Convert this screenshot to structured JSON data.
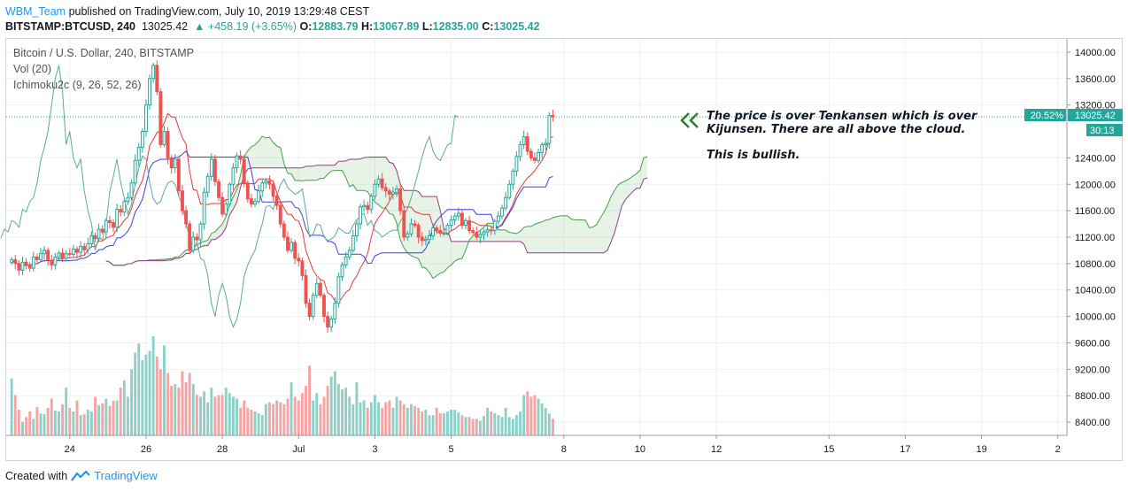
{
  "header": {
    "author": "WBM_Team",
    "published_text": "published on TradingView.com, July 10, 2019 13:29:48 CEST"
  },
  "ohlc": {
    "symbol": "BITSTAMP:BTCUSD, 240",
    "last": "13025.42",
    "change": "▲ +458.19 (+3.65%)",
    "o_label": "O:",
    "o": "12883.79",
    "h_label": "H:",
    "h": "13067.89",
    "l_label": "L:",
    "l": "12835.00",
    "c_label": "C:",
    "c": "13025.42"
  },
  "legend": {
    "title": "Bitcoin / U.S. Dollar, 240, BITSTAMP",
    "vol": "Vol (20)",
    "ichimoku": "Ichimoku2c (9, 26, 52, 26)"
  },
  "annotation": {
    "line1": "The price is over Tenkansen which is over",
    "line2": "Kijunsen. There are all above the cloud.",
    "line3": "This is bullish."
  },
  "badges": {
    "percent": "20.52%",
    "price": "13025.42",
    "countdown": "30:13"
  },
  "footer": {
    "created_with": "Created with",
    "brand": "TradingView"
  },
  "colors": {
    "up": "#26a69a",
    "down": "#ef5350",
    "vol_up": "#8dd0c8",
    "vol_down": "#f5a3a3",
    "tenkan": "#e53935",
    "kijun": "#3f3fdf",
    "chikou": "#5ba9a0",
    "span_a": "#43a047",
    "span_b": "#8e3f7f",
    "cloud": "rgba(67,160,71,0.13)",
    "arrow": "#2e7d32"
  },
  "chart_data": {
    "type": "candlestick",
    "title": "Bitcoin / U.S. Dollar, 240, BITSTAMP",
    "y_ticks": [
      14000,
      13600,
      13200,
      12400,
      12000,
      11600,
      11200,
      10800,
      10400,
      10000,
      9600,
      9200,
      8800,
      8400
    ],
    "y_tick_labels": [
      "14000.00",
      "13600.00",
      "13200.00",
      "12400.00",
      "12000.00",
      "11600.00",
      "11200.00",
      "10800.00",
      "10400.00",
      "10000.00",
      "9600.00",
      "9200.00",
      "8800.00",
      "8400.00"
    ],
    "ylim": [
      8200,
      14200
    ],
    "x_ticks": [
      {
        "label": "24",
        "i": 16
      },
      {
        "label": "26",
        "i": 37
      },
      {
        "label": "28",
        "i": 58
      },
      {
        "label": "Jul",
        "i": 79
      },
      {
        "label": "3",
        "i": 100
      },
      {
        "label": "5",
        "i": 121
      },
      {
        "label": "8",
        "i": 152
      },
      {
        "label": "10",
        "i": 173
      },
      {
        "label": "12",
        "i": 194
      },
      {
        "label": "15",
        "i": 225
      },
      {
        "label": "17",
        "i": 246
      },
      {
        "label": "19",
        "i": 267
      },
      {
        "label": "2",
        "i": 288
      }
    ],
    "x_range": [
      -1.5,
      290.5
    ],
    "close": [
      10860,
      10800,
      10700,
      10820,
      10780,
      10730,
      10900,
      10860,
      10950,
      11000,
      10850,
      10780,
      10900,
      10960,
      10880,
      10950,
      10940,
      11020,
      10970,
      11060,
      11010,
      11100,
      11220,
      11180,
      11320,
      11280,
      11450,
      11420,
      11350,
      11620,
      11580,
      11740,
      11800,
      12020,
      12360,
      12560,
      12800,
      13200,
      13600,
      13800,
      13400,
      12600,
      12800,
      12400,
      12250,
      12380,
      11900,
      11600,
      11400,
      11000,
      11200,
      11160,
      11400,
      11880,
      12120,
      12380,
      12040,
      11800,
      11550,
      11700,
      12000,
      12250,
      12430,
      12380,
      12020,
      11780,
      11700,
      11740,
      11900,
      12020,
      12050,
      12000,
      11820,
      11680,
      11400,
      11200,
      11000,
      11120,
      10880,
      10840,
      10620,
      10200,
      10000,
      10320,
      10500,
      10320,
      10000,
      9840,
      9960,
      10200,
      10600,
      10780,
      10900,
      11000,
      11220,
      11400,
      11660,
      11680,
      11620,
      11820,
      12000,
      12080,
      11950,
      11900,
      11850,
      11880,
      11930,
      11600,
      11200,
      11250,
      11400,
      11380,
      11200,
      11150,
      11170,
      11220,
      11340,
      11300,
      11260,
      11260,
      11380,
      11460,
      11520,
      11560,
      11380,
      11450,
      11300,
      11270,
      11200,
      11240,
      11280,
      11310,
      11300,
      11440,
      11520,
      11640,
      11800,
      12000,
      12200,
      12420,
      12600,
      12720,
      12500,
      12400,
      12360,
      12480,
      12600,
      12620,
      13040,
      13020
    ],
    "volume": [
      620,
      440,
      280,
      150,
      200,
      260,
      180,
      310,
      240,
      230,
      300,
      400,
      270,
      260,
      340,
      520,
      300,
      260,
      380,
      220,
      230,
      280,
      260,
      420,
      330,
      350,
      400,
      320,
      380,
      380,
      520,
      600,
      420,
      720,
      900,
      1000,
      820,
      880,
      920,
      1080,
      860,
      720,
      980,
      680,
      540,
      560,
      520,
      700,
      580,
      680,
      560,
      440,
      420,
      480,
      360,
      520,
      420,
      440,
      440,
      520,
      460,
      420,
      400,
      300,
      380,
      300,
      280,
      260,
      240,
      220,
      340,
      360,
      340,
      380,
      360,
      340,
      400,
      580,
      420,
      380,
      460,
      540,
      760,
      380,
      460,
      340,
      420,
      540,
      640,
      700,
      560,
      500,
      520,
      420,
      340,
      580,
      360,
      380,
      300,
      360,
      440,
      360,
      300,
      360,
      380,
      300,
      420,
      380,
      340,
      300,
      340,
      320,
      300,
      260,
      280,
      220,
      220,
      300,
      240,
      240,
      260,
      280,
      280,
      250,
      220,
      200,
      200,
      180,
      180,
      160,
      210,
      300,
      260,
      240,
      220,
      200,
      300,
      200,
      180,
      220,
      260,
      440,
      480,
      420,
      440,
      400,
      350,
      300,
      240,
      180
    ]
  }
}
